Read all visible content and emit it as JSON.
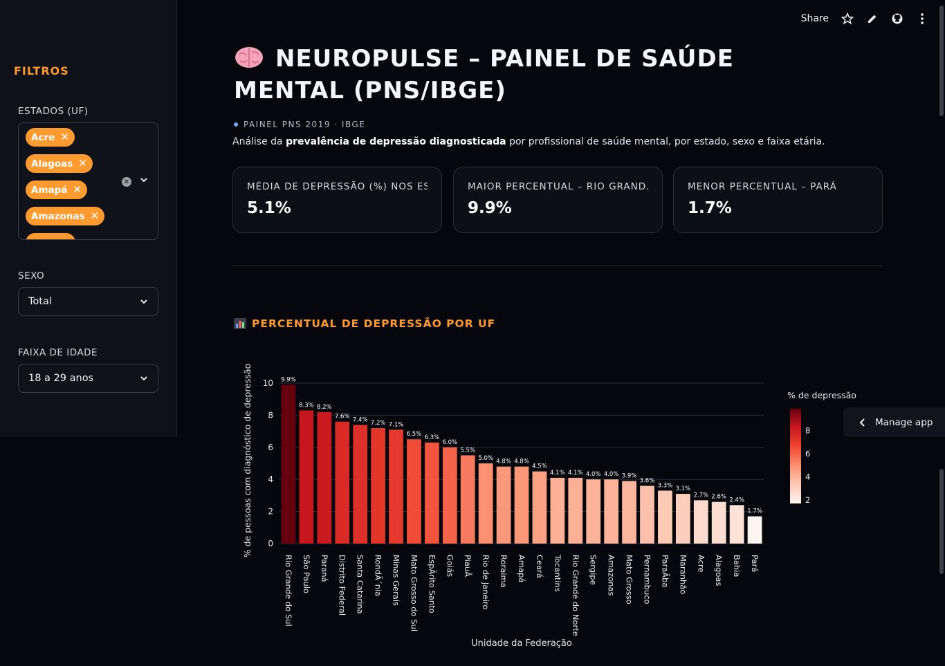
{
  "sidebar": {
    "title": "FILTROS",
    "estados_label": "ESTADOS (UF)",
    "estados_chips": [
      "Acre",
      "Alagoas",
      "Amapá",
      "Amazonas"
    ],
    "sexo_label": "SEXO",
    "sexo_value": "Total",
    "faixa_label": "FAIXA DE IDADE",
    "faixa_value": "18 a 29 anos"
  },
  "toolbar": {
    "share_label": "Share"
  },
  "header": {
    "title": "NEUROPULSE – PAINEL DE SAÚDE MENTAL (PNS/IBGE)",
    "tag": "PAINEL PNS 2019 · IBGE",
    "description_prefix": "Análise da ",
    "description_bold": "prevalência de depressão diagnosticada",
    "description_suffix": " por profissional de saúde mental, por estado, sexo e faixa etária."
  },
  "metrics": [
    {
      "label": "MÉDIA DE DEPRESSÃO (%) NOS ES...",
      "value": "5.1%"
    },
    {
      "label": "MAIOR PERCENTUAL – RIO GRAND...",
      "value": "9.9%"
    },
    {
      "label": "MENOR PERCENTUAL – PARÁ",
      "value": "1.7%"
    }
  ],
  "section": {
    "title": "PERCENTUAL DE DEPRESSÃO POR UF"
  },
  "manage_app": "Manage app",
  "colors": {
    "accent": "#ff9a2e",
    "bar_high": "#67000d",
    "bar_low": "#fff5f0"
  },
  "chart_data": {
    "type": "bar",
    "title": "PERCENTUAL DE DEPRESSÃO POR UF",
    "xlabel": "Unidade da Federação",
    "ylabel": "% de pessoas com diagnóstico de depressão",
    "ylim": [
      0,
      11
    ],
    "yticks": [
      0,
      2,
      4,
      6,
      8,
      10
    ],
    "categories": [
      "Rio Grande do Sul",
      "São Paulo",
      "Paraná",
      "Distrito Federal",
      "Santa Catarina",
      "RondÃ´nia",
      "Minas Gerais",
      "Mato Grosso do Sul",
      "EspÃ­rito Santo",
      "Goiás",
      "PiauÃ",
      "Rio de Janeiro",
      "Roraima",
      "Amapá",
      "Ceará",
      "Tocantins",
      "Rio Grande do Norte",
      "Sergipe",
      "Amazonas",
      "Mato Grosso",
      "Pernambuco",
      "ParaÃ­ba",
      "Maranhão",
      "Acre",
      "Alagoas",
      "Bahia",
      "Pará"
    ],
    "values": [
      9.9,
      8.3,
      8.2,
      7.6,
      7.4,
      7.2,
      7.1,
      6.5,
      6.3,
      6.0,
      5.5,
      5.0,
      4.8,
      4.8,
      4.5,
      4.1,
      4.1,
      4.0,
      4.0,
      3.9,
      3.6,
      3.3,
      3.1,
      2.7,
      2.6,
      2.4,
      1.7
    ],
    "data_labels": [
      "9.9%",
      "8.3%",
      "8.2%",
      "7.6%",
      "7.4%",
      "7.2%",
      "7.1%",
      "6.5%",
      "6.3%",
      "6.0%",
      "5.5%",
      "5.0%",
      "4.8%",
      "4.8%",
      "4.5%",
      "4.1%",
      "4.1%",
      "4.0%",
      "4.0%",
      "3.9%",
      "3.6%",
      "3.3%",
      "3.1%",
      "2.7%",
      "2.6%",
      "2.4%",
      "1.7%"
    ],
    "colorbar": {
      "title": "% de depressão",
      "ticks": [
        2,
        4,
        6,
        8
      ],
      "range": [
        1.7,
        9.9
      ]
    }
  }
}
